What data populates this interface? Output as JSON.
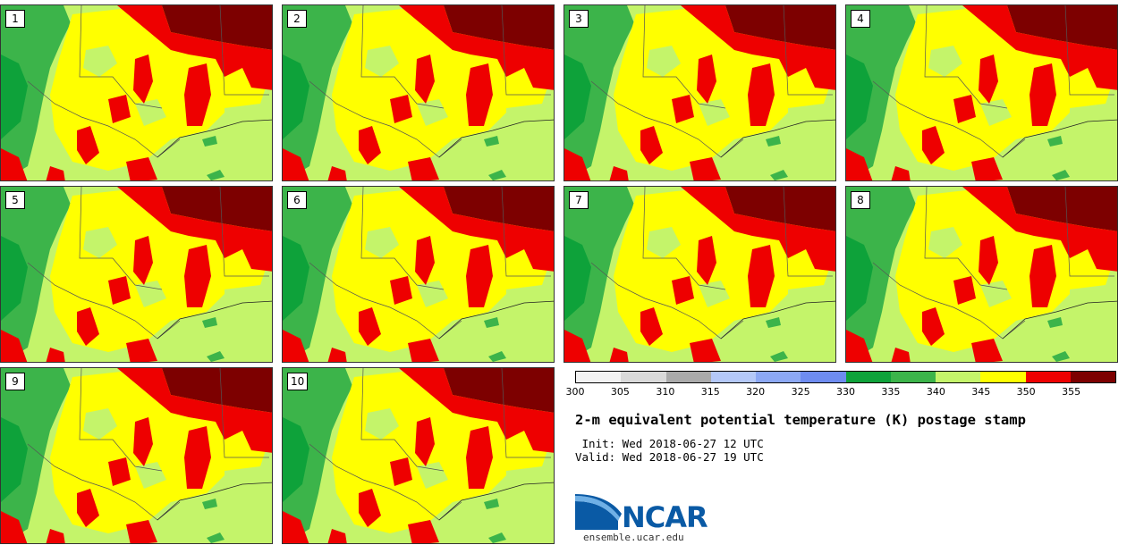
{
  "panels": [
    {
      "label": "1"
    },
    {
      "label": "2"
    },
    {
      "label": "3"
    },
    {
      "label": "4"
    },
    {
      "label": "5"
    },
    {
      "label": "6"
    },
    {
      "label": "7"
    },
    {
      "label": "8"
    },
    {
      "label": "9"
    },
    {
      "label": "10"
    }
  ],
  "colorbar": {
    "ticks": [
      "300",
      "305",
      "310",
      "315",
      "320",
      "325",
      "330",
      "335",
      "340",
      "345",
      "350",
      "355"
    ],
    "colors": [
      "#f2f2f2",
      "#d9d9d9",
      "#aaaaaa",
      "#b4c8f8",
      "#8ca8f4",
      "#6e8cf0",
      "#0ea23a",
      "#3cb44a",
      "#c4f46a",
      "#ffff00",
      "#ee0000",
      "#7d0000"
    ]
  },
  "title": "2-m equivalent potential temperature (K) postage stamp",
  "init": " Init: Wed 2018-06-27 12 UTC",
  "valid": "Valid: Wed 2018-06-27 19 UTC",
  "logo": {
    "text": "NCAR",
    "url": "ensemble.ucar.edu"
  }
}
